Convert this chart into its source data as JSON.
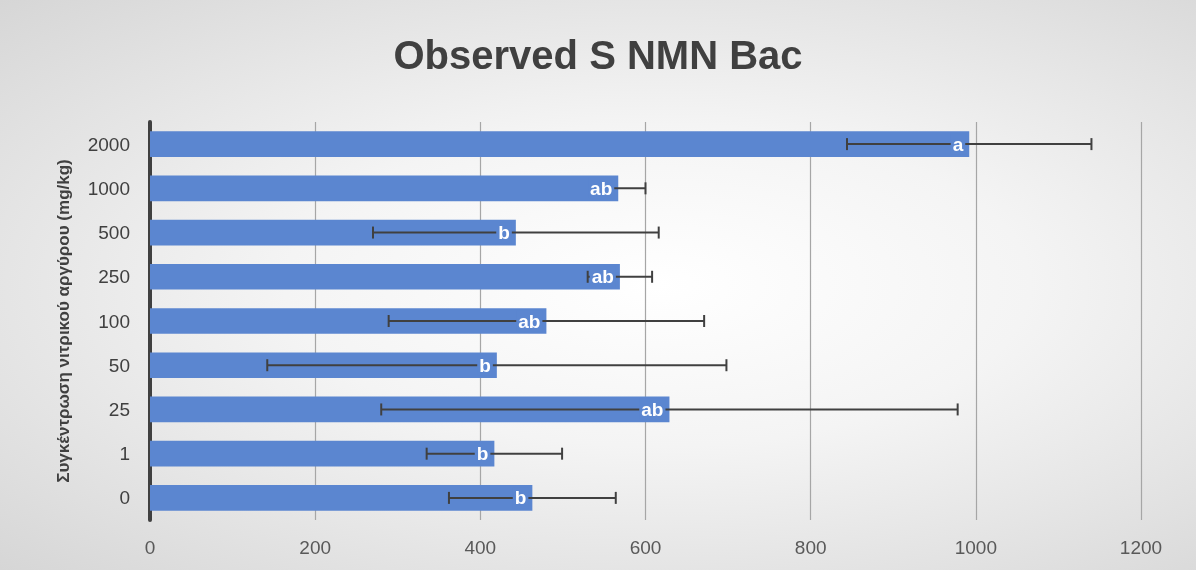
{
  "chart_data": {
    "type": "bar",
    "orientation": "horizontal",
    "title": "Observed S NMN Bac",
    "ylabel": "Συγκέντρωση νιτρικού αργύρου (mg/kg)",
    "categories": [
      "2000",
      "1000",
      "500",
      "250",
      "100",
      "50",
      "25",
      "1",
      "0"
    ],
    "values": [
      992,
      567,
      443,
      569,
      480,
      420,
      629,
      417,
      463
    ],
    "errors": [
      148,
      33,
      173,
      39,
      191,
      278,
      349,
      82,
      101
    ],
    "color": "#5b86d0",
    "xlim": [
      0,
      1200
    ],
    "xticks": [
      0,
      200,
      400,
      600,
      800,
      1000,
      1200
    ],
    "grid": "x",
    "annotations": [
      {
        "text": "a",
        "x": 992,
        "y": "2000"
      },
      {
        "text": "ab",
        "x": 567,
        "y": "1000"
      },
      {
        "text": "b",
        "x": 443,
        "y": "500"
      },
      {
        "text": "ab",
        "x": 569,
        "y": "250"
      },
      {
        "text": "ab",
        "x": 480,
        "y": "100"
      },
      {
        "text": "b",
        "x": 420,
        "y": "50"
      },
      {
        "text": "ab",
        "x": 629,
        "y": "25"
      },
      {
        "text": "b",
        "x": 417,
        "y": "1"
      },
      {
        "text": "b",
        "x": 463,
        "y": "0"
      }
    ]
  }
}
